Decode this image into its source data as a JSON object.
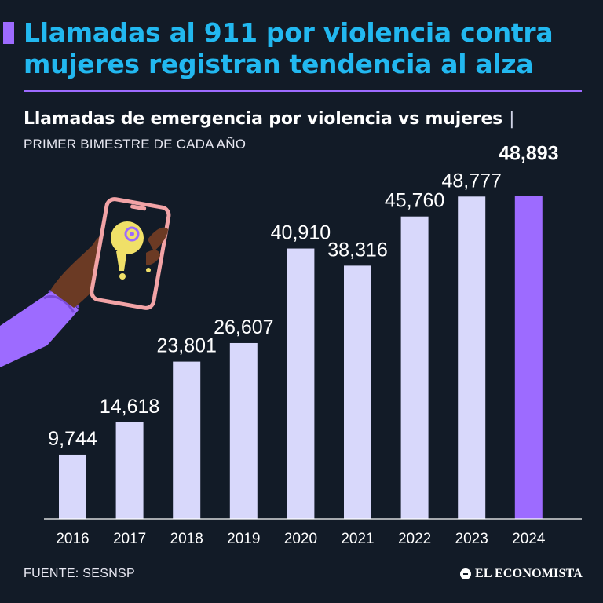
{
  "header": {
    "title": "Llamadas al 911 por violencia contra mujeres registran tendencia al alza"
  },
  "chart_data": {
    "type": "bar",
    "title": "Llamadas de emergencia por violencia vs mujeres",
    "title_separator": "|",
    "subtitle": "PRIMER BIMESTRE DE CADA AÑO",
    "categories": [
      "2016",
      "2017",
      "2018",
      "2019",
      "2020",
      "2021",
      "2022",
      "2023",
      "2024"
    ],
    "values": [
      9744,
      14618,
      23801,
      26607,
      40910,
      38316,
      45760,
      48777,
      48893
    ],
    "labels": [
      "9,744",
      "14,618",
      "23,801",
      "26,607",
      "40,910",
      "38,316",
      "45,760",
      "48,777",
      "48,893"
    ],
    "highlight_index": 8,
    "ylim": [
      0,
      50000
    ],
    "grid": false,
    "colors": {
      "bar": "#d8d8fb",
      "highlight": "#9d6bff",
      "axis": "#ffffff"
    }
  },
  "footer": {
    "source": "FUENTE: SESNSP",
    "brand": "EL ECONOMISTA"
  },
  "illustration": {
    "icons": [
      "hand-holding-phone-icon",
      "phone-call-icon",
      "exclamation-icon"
    ],
    "colors": {
      "sleeve": "#9d6bff",
      "skin": "#6b3a24",
      "phone": "#f2a3a6",
      "screen": "#121b27",
      "bubble": "#f0e068"
    }
  }
}
